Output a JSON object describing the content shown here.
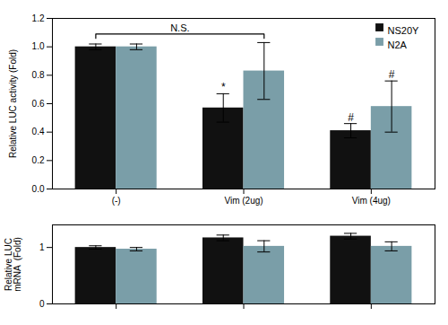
{
  "chart_data": [
    {
      "type": "bar",
      "categories": [
        "(-)",
        "Vim (2ug)",
        "Vim (4ug)"
      ],
      "series": [
        {
          "name": "NS20Y",
          "color": "#111111",
          "values": [
            1.0,
            0.57,
            0.41
          ],
          "errors": [
            0.02,
            0.1,
            0.05
          ]
        },
        {
          "name": "N2A",
          "color": "#7a9ea8",
          "values": [
            1.0,
            0.83,
            0.58
          ],
          "errors": [
            0.02,
            0.2,
            0.18
          ]
        }
      ],
      "ylabel": "Relative LUC activity (Fold)",
      "ylim": [
        0,
        1.2
      ],
      "yticks": [
        {
          "value": 0,
          "label": "0.0"
        },
        0.2,
        0.4,
        0.6,
        0.8,
        {
          "value": 1.0,
          "label": "1.0"
        },
        1.2
      ],
      "legend": "upper right",
      "annotations": [
        {
          "text": "N.S.",
          "from": {
            "category": "(-)",
            "series": "NS20Y"
          },
          "to": {
            "category": "Vim (2ug)",
            "series": "N2A"
          }
        },
        {
          "text": "*",
          "category": "Vim (2ug)",
          "series": "NS20Y"
        },
        {
          "text": "#",
          "category": "Vim (4ug)",
          "series": "NS20Y"
        },
        {
          "text": "#",
          "category": "Vim (4ug)",
          "series": "N2A"
        }
      ]
    },
    {
      "type": "bar",
      "categories": [
        "(-)",
        "Vim (2ug)",
        "Vim (4ug)"
      ],
      "series": [
        {
          "name": "NS20Y",
          "color": "#111111",
          "values": [
            1.0,
            1.17,
            1.2
          ],
          "errors": [
            0.03,
            0.05,
            0.05
          ]
        },
        {
          "name": "N2A",
          "color": "#7a9ea8",
          "values": [
            0.97,
            1.02,
            1.02
          ],
          "errors": [
            0.03,
            0.1,
            0.08
          ]
        }
      ],
      "ylabel": "Relative LUC\nmRNA  (Fold)",
      "ylim": [
        0,
        1.4
      ],
      "yticks": [
        0,
        1
      ],
      "tick_labels": "y"
    }
  ]
}
